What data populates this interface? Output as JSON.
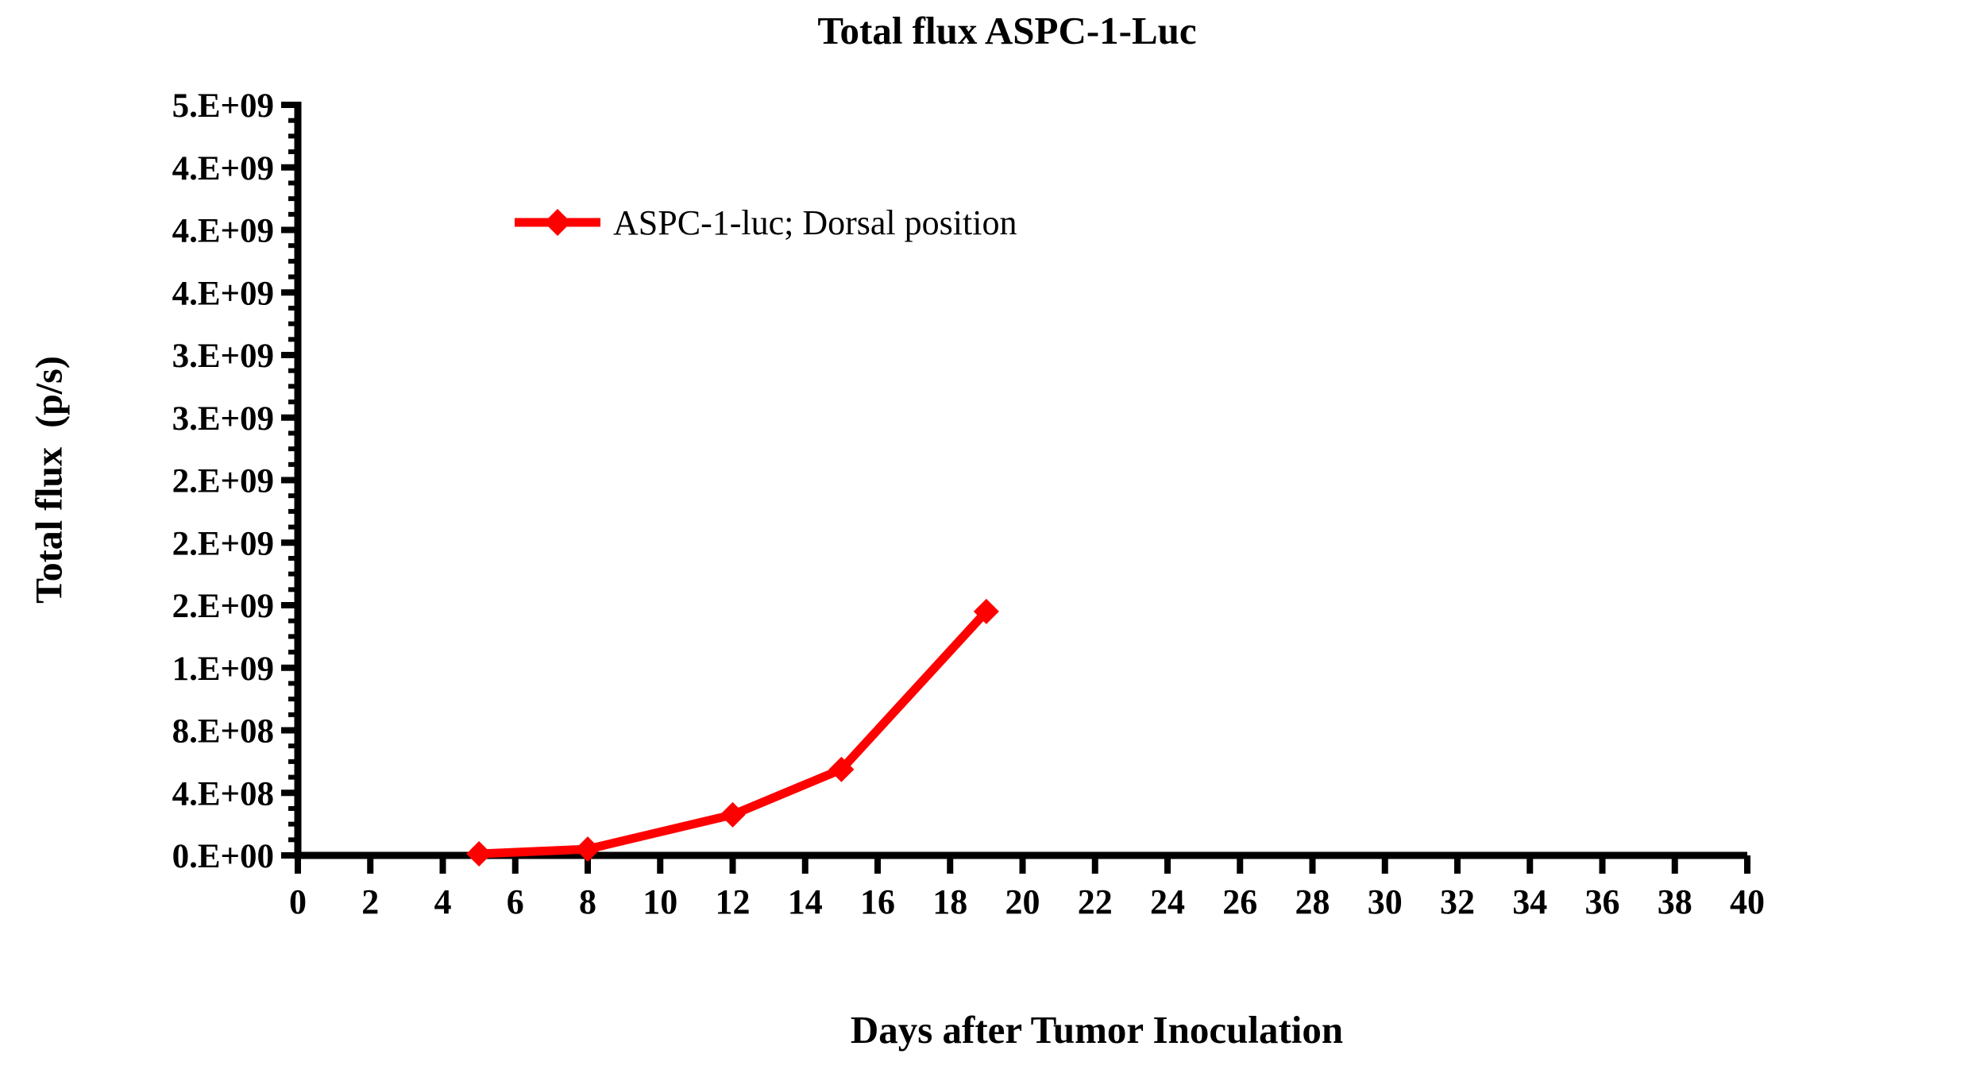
{
  "chart_data": {
    "type": "line",
    "title": "Total flux ASPC-1-Luc",
    "xlabel": "Days after Tumor Inoculation",
    "ylabel": "Total flux  (p/s)",
    "legend_position": "upper-left-inside",
    "grid": false,
    "xlim": [
      0,
      40
    ],
    "ylim": [
      0,
      4800000000
    ],
    "x_ticks": [
      0,
      2,
      4,
      6,
      8,
      10,
      12,
      14,
      16,
      18,
      20,
      22,
      24,
      26,
      28,
      30,
      32,
      34,
      36,
      38,
      40
    ],
    "y_major_tick_step": 400000000,
    "y_minor_tick_step": 100000000,
    "y_tick_labels_bottom_to_top": [
      "0.E+00",
      "4.E+08",
      "8.E+08",
      "1.E+09",
      "2.E+09",
      "2.E+09",
      "2.E+09",
      "3.E+09",
      "3.E+09",
      "4.E+09",
      "4.E+09",
      "4.E+09",
      "5.E+09"
    ],
    "series": [
      {
        "name": "ASPC-1-luc; Dorsal position",
        "color": "#FF0000",
        "marker": "diamond",
        "points": [
          {
            "x": 5,
            "y": 10000000
          },
          {
            "x": 8,
            "y": 40000000
          },
          {
            "x": 12,
            "y": 260000000
          },
          {
            "x": 15,
            "y": 550000000
          },
          {
            "x": 19,
            "y": 1560000000
          }
        ]
      }
    ]
  },
  "colors": {
    "background": "#FFFFFF",
    "axis": "#000000",
    "text": "#000000",
    "series_red": "#FF0000"
  }
}
